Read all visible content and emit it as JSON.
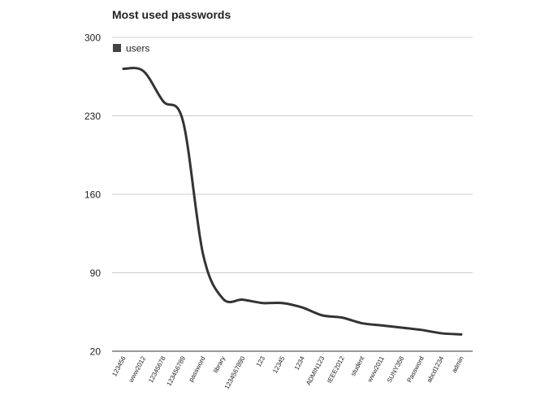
{
  "chart_data": {
    "type": "line",
    "title": "Most used passwords",
    "xlabel": "",
    "ylabel": "",
    "categories": [
      "123456",
      "www2012",
      "12345678",
      "123456789",
      "password",
      "library",
      "1234567890",
      "123",
      "12345",
      "1234",
      "ADMIN123",
      "IEEE2012",
      "student",
      "www2011",
      "SUNY358",
      "Password",
      "abcd1234",
      "admin"
    ],
    "series": [
      {
        "name": "users",
        "values": [
          272,
          270,
          243,
          225,
          107,
          67,
          66,
          63,
          63,
          59,
          52,
          50,
          45,
          43,
          41,
          39,
          36,
          35
        ]
      }
    ],
    "ylim": [
      20,
      300
    ],
    "yticks": [
      20,
      90,
      160,
      230,
      300
    ],
    "grid": true,
    "legend": "top-left",
    "colors": {
      "line": "#333333",
      "grid": "#cccccc",
      "axis": "#333333",
      "text": "#222222"
    }
  }
}
